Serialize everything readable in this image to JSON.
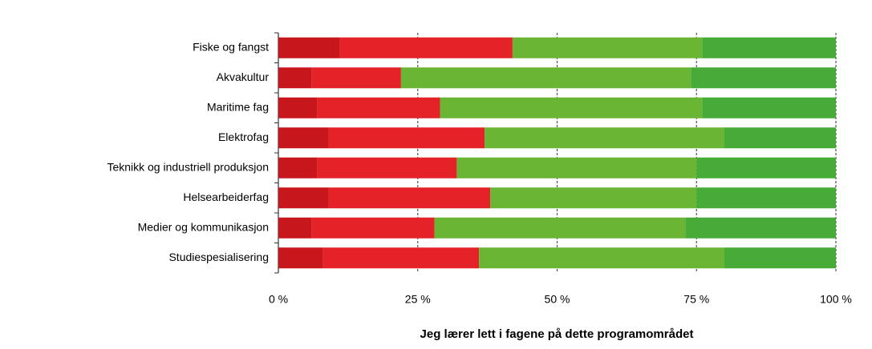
{
  "chart_data": {
    "type": "stacked_barh",
    "xlabel": "Jeg lærer lett i fagene på dette programområdet",
    "categories": [
      "Fiske og fangst",
      "Akvakultur",
      "Maritime fag",
      "Elektrofag",
      "Teknikk og industriell produksjon",
      "Helsearbeiderfag",
      "Medier og kommunikasjon",
      "Studiespesialisering"
    ],
    "series": [
      {
        "color": "#c8161d",
        "values": [
          11,
          6,
          7,
          9,
          7,
          9,
          6,
          8
        ]
      },
      {
        "color": "#e52228",
        "values": [
          31,
          16,
          22,
          28,
          25,
          29,
          22,
          28
        ]
      },
      {
        "color": "#6ab533",
        "values": [
          34,
          52,
          47,
          43,
          43,
          37,
          45,
          44
        ]
      },
      {
        "color": "#47ab38",
        "values": [
          24,
          26,
          24,
          20,
          25,
          25,
          27,
          20
        ]
      }
    ],
    "xlim": [
      0,
      100
    ],
    "xticks": [
      {
        "value": 0,
        "label": "0 %"
      },
      {
        "value": 25,
        "label": "25 %"
      },
      {
        "value": 50,
        "label": "50 %"
      },
      {
        "value": 75,
        "label": "75 %"
      },
      {
        "value": 100,
        "label": "100 %"
      }
    ],
    "grid": true
  }
}
